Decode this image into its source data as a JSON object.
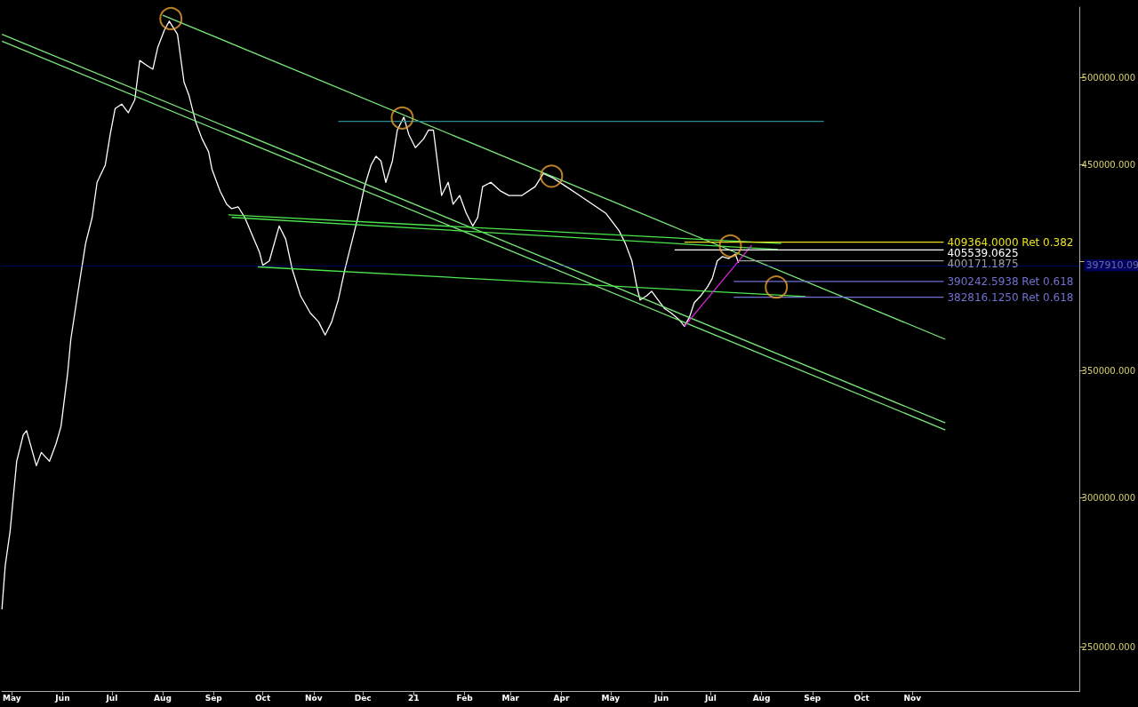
{
  "chart_data": {
    "type": "line",
    "log": "y",
    "grid": false,
    "legend": false,
    "xlim": [
      "2020-04-25",
      "2022-02-11"
    ],
    "ylim": [
      237000,
      545000
    ],
    "xticks": [
      {
        "value": "2020-05-01",
        "label": "May"
      },
      {
        "value": "2020-06-01",
        "label": "Jun"
      },
      {
        "value": "2020-07-01",
        "label": "Jul"
      },
      {
        "value": "2020-08-01",
        "label": "Aug"
      },
      {
        "value": "2020-09-01",
        "label": "Sep"
      },
      {
        "value": "2020-10-01",
        "label": "Oct"
      },
      {
        "value": "2020-11-01",
        "label": "Nov"
      },
      {
        "value": "2020-12-01",
        "label": "Dec"
      },
      {
        "value": "2021-01-01",
        "label": "21"
      },
      {
        "value": "2021-02-01",
        "label": "Feb"
      },
      {
        "value": "2021-03-01",
        "label": "Mar"
      },
      {
        "value": "2021-04-01",
        "label": "Apr"
      },
      {
        "value": "2021-05-01",
        "label": "May"
      },
      {
        "value": "2021-06-01",
        "label": "Jun"
      },
      {
        "value": "2021-07-01",
        "label": "Jul"
      },
      {
        "value": "2021-08-01",
        "label": "Aug"
      },
      {
        "value": "2021-09-01",
        "label": "Sep"
      },
      {
        "value": "2021-10-01",
        "label": "Oct"
      },
      {
        "value": "2021-11-01",
        "label": "Nov"
      }
    ],
    "yticks": [
      {
        "value": 250000,
        "label": "250000.000"
      },
      {
        "value": 300000,
        "label": "300000.000"
      },
      {
        "value": 350000,
        "label": "350000.000"
      },
      {
        "value": 400000,
        "label": null
      },
      {
        "value": 450000,
        "label": "450000.000"
      },
      {
        "value": 500000,
        "label": "500000.000"
      }
    ],
    "ref_lines": [
      {
        "axis": "y",
        "value": 397910.09,
        "label": "397910.09",
        "color": "#0000ee"
      }
    ],
    "series": [
      {
        "color": "#ffffff",
        "marker": "none",
        "x": [
          "2020-04-25",
          "2020-04-27",
          "2020-04-30",
          "2020-05-02",
          "2020-05-04",
          "2020-05-08",
          "2020-05-10",
          "2020-05-16",
          "2020-05-19",
          "2020-05-24",
          "2020-05-28",
          "2020-05-31",
          "2020-06-04",
          "2020-06-06",
          "2020-06-10",
          "2020-06-15",
          "2020-06-19",
          "2020-06-22",
          "2020-06-27",
          "2020-06-30",
          "2020-07-03",
          "2020-07-07",
          "2020-07-11",
          "2020-07-15",
          "2020-07-18",
          "2020-07-22",
          "2020-07-26",
          "2020-07-29",
          "2020-08-02",
          "2020-08-05",
          "2020-08-10",
          "2020-08-14",
          "2020-08-17",
          "2020-08-21",
          "2020-08-25",
          "2020-08-29",
          "2020-08-31",
          "2020-09-05",
          "2020-09-09",
          "2020-09-12",
          "2020-09-16",
          "2020-09-20",
          "2020-09-24",
          "2020-09-29",
          "2020-10-01",
          "2020-10-05",
          "2020-10-11",
          "2020-10-15",
          "2020-10-19",
          "2020-10-24",
          "2020-10-30",
          "2020-11-04",
          "2020-11-08",
          "2020-11-12",
          "2020-11-16",
          "2020-11-20",
          "2020-11-24",
          "2020-11-28",
          "2020-12-02",
          "2020-12-06",
          "2020-12-09",
          "2020-12-12",
          "2020-12-15",
          "2020-12-19",
          "2020-12-22",
          "2020-12-26",
          "2020-12-29",
          "2021-01-02",
          "2021-01-07",
          "2021-01-10",
          "2021-01-13",
          "2021-01-16",
          "2021-01-18",
          "2021-01-22",
          "2021-01-25",
          "2021-01-29",
          "2021-02-02",
          "2021-02-06",
          "2021-02-09",
          "2021-02-12",
          "2021-02-17",
          "2021-02-23",
          "2021-02-28",
          "2021-03-08",
          "2021-03-16",
          "2021-03-21",
          "2021-03-27",
          "2021-04-04",
          "2021-04-12",
          "2021-04-20",
          "2021-04-28",
          "2021-05-06",
          "2021-05-10",
          "2021-05-14",
          "2021-05-17",
          "2021-05-19",
          "2021-05-23",
          "2021-05-26",
          "2021-05-30",
          "2021-06-03",
          "2021-06-07",
          "2021-06-12",
          "2021-06-15",
          "2021-06-18",
          "2021-06-21",
          "2021-06-25",
          "2021-06-29",
          "2021-07-02",
          "2021-07-05",
          "2021-07-08",
          "2021-07-12",
          "2021-07-16",
          "2021-07-18"
        ],
        "values": [
          261800,
          276000,
          288000,
          300500,
          313500,
          323700,
          325400,
          311800,
          316900,
          313500,
          320300,
          327100,
          348600,
          363700,
          383500,
          408700,
          421900,
          440300,
          449700,
          466700,
          481700,
          484300,
          479200,
          486900,
          510700,
          507900,
          505300,
          519000,
          529900,
          535700,
          527200,
          497400,
          489500,
          474200,
          464200,
          456900,
          447400,
          435600,
          428700,
          426400,
          427300,
          421900,
          414000,
          404400,
          398000,
          400100,
          417500,
          410800,
          395900,
          383500,
          375500,
          371500,
          365600,
          371500,
          381500,
          395900,
          408700,
          421900,
          438000,
          449700,
          454500,
          451900,
          440300,
          451900,
          469200,
          476700,
          466700,
          459300,
          464200,
          469200,
          469200,
          447400,
          433300,
          440300,
          428700,
          433300,
          424100,
          417500,
          421900,
          438000,
          440300,
          435600,
          433300,
          433300,
          438000,
          445000,
          442600,
          438000,
          433300,
          428700,
          424100,
          415300,
          408700,
          400100,
          387600,
          381500,
          383500,
          385600,
          381500,
          377500,
          375500,
          372300,
          369500,
          373500,
          380300,
          383500,
          387600,
          391700,
          400100,
          402200,
          401300,
          403500,
          399200
        ]
      },
      {
        "color": "#7ae87a",
        "marker": "none",
        "x": [
          "2020-08-01",
          "2021-11-21"
        ],
        "values": [
          539700,
          363700
        ]
      },
      {
        "color": "#7ae87a",
        "marker": "none",
        "x": [
          "2020-04-25",
          "2021-11-21"
        ],
        "values": [
          527200,
          328500
        ]
      },
      {
        "color": "#7ae87a",
        "marker": "none",
        "x": [
          "2020-04-25",
          "2021-11-21"
        ],
        "values": [
          522800,
          325700
        ]
      },
      {
        "color": "#4ee84e",
        "marker": "none",
        "x": [
          "2020-09-10",
          "2021-08-13"
        ],
        "values": [
          423200,
          408700
        ]
      },
      {
        "color": "#4ee84e",
        "marker": "none",
        "x": [
          "2020-09-12",
          "2021-08-11"
        ],
        "values": [
          421900,
          405700
        ]
      },
      {
        "color": "#4ee84e",
        "marker": "none",
        "x": [
          "2020-09-28",
          "2021-08-28"
        ],
        "values": [
          397200,
          383100
        ]
      },
      {
        "color": "#2a8a90",
        "marker": "none",
        "x": [
          "2020-11-16",
          "2021-09-08"
        ],
        "values": [
          474200,
          474200
        ]
      },
      {
        "color": "#e020e0",
        "marker": "none",
        "x": [
          "2021-06-15",
          "2021-07-26"
        ],
        "values": [
          369500,
          407800
        ]
      },
      {
        "name": "409364.0000 Ret 0.382",
        "color": "#e8e020",
        "marker": "none",
        "x": [
          "2021-06-15",
          "2021-11-20"
        ],
        "values": [
          409364,
          409364
        ]
      },
      {
        "name": "405539.0625",
        "color": "#ffffff",
        "marker": "none",
        "x": [
          "2021-06-09",
          "2021-11-20"
        ],
        "values": [
          405539.0625,
          405539.0625
        ]
      },
      {
        "name": "400171.1875",
        "color": "#a0a0a0",
        "marker": "none",
        "x": [
          "2021-07-18",
          "2021-11-20"
        ],
        "values": [
          400171.1875,
          400171.1875
        ]
      },
      {
        "name": "390242.5938 Ret 0.618",
        "color": "#7070d0",
        "marker": "none",
        "x": [
          "2021-07-15",
          "2021-11-20"
        ],
        "values": [
          390242.5938,
          390242.5938
        ]
      },
      {
        "name": "382816.1250 Ret 0.618",
        "color": "#7070d0",
        "marker": "none",
        "x": [
          "2021-07-15",
          "2021-11-20"
        ],
        "values": [
          382816.125,
          382816.125
        ]
      },
      {
        "type": "scatter",
        "color": "#e8a030",
        "marker": "circle",
        "x": [
          "2020-08-06",
          "2020-12-25",
          "2021-03-26",
          "2021-07-13",
          "2021-08-10"
        ],
        "values": [
          537400,
          476200,
          443600,
          407500,
          387600
        ]
      }
    ]
  }
}
